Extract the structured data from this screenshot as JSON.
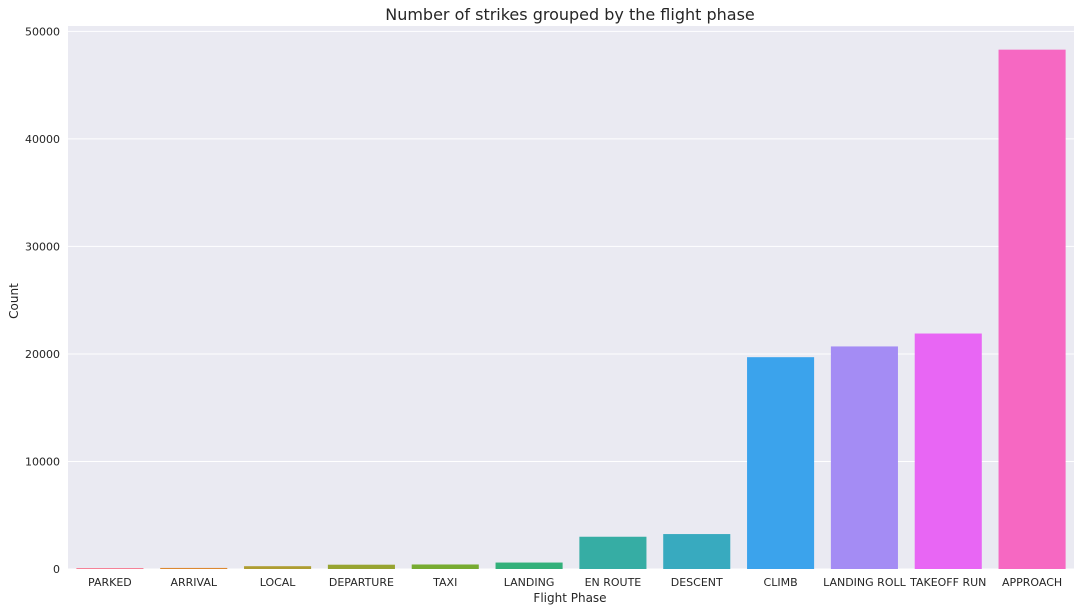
{
  "chart_data": {
    "type": "bar",
    "title": "Number of strikes grouped by the flight phase",
    "xlabel": "Flight Phase",
    "ylabel": "Count",
    "ylim": [
      0,
      50500
    ],
    "yticks": [
      0,
      10000,
      20000,
      30000,
      40000,
      50000
    ],
    "grid": true,
    "categories": [
      "PARKED",
      "ARRIVAL",
      "LOCAL",
      "DEPARTURE",
      "TAXI",
      "LANDING",
      "EN ROUTE",
      "DESCENT",
      "CLIMB",
      "LANDING ROLL",
      "TAKEOFF RUN",
      "APPROACH"
    ],
    "values": [
      80,
      100,
      260,
      400,
      420,
      600,
      3000,
      3250,
      19700,
      20700,
      21900,
      48300
    ],
    "colors": [
      "#f77189",
      "#dc8932",
      "#ae9d31",
      "#97a431",
      "#77ab31",
      "#33b07a",
      "#36ada4",
      "#38aabf",
      "#3ba3ec",
      "#a48cf4",
      "#e866f4",
      "#f668c2"
    ]
  }
}
